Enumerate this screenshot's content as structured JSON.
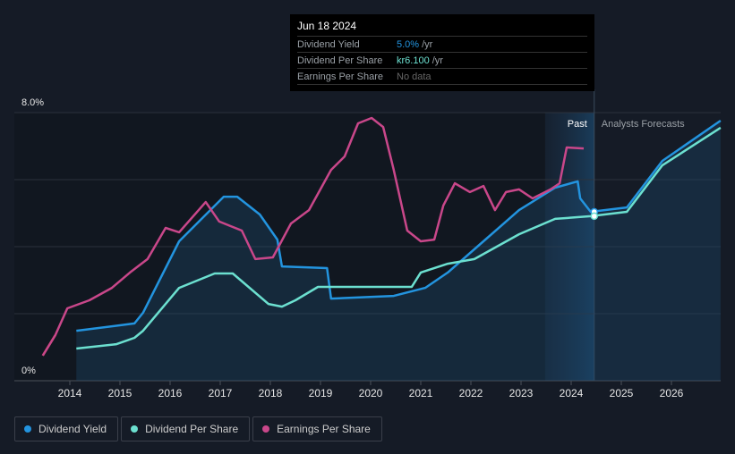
{
  "tooltip": {
    "date": "Jun 18 2024",
    "rows": [
      {
        "label": "Dividend Yield",
        "value": "5.0%",
        "unit": "/yr",
        "color": "#2394df"
      },
      {
        "label": "Dividend Per Share",
        "value": "kr6.100",
        "unit": "/yr",
        "color": "#6ce0d0"
      },
      {
        "label": "Earnings Per Share",
        "value": "No data",
        "unit": "",
        "color": "#666"
      }
    ]
  },
  "chart_data": {
    "type": "line",
    "ylabels": [
      "8.0%",
      "0%"
    ],
    "ylim": [
      0,
      8
    ],
    "xlim": [
      2013.4,
      2027.0
    ],
    "xticks": [
      "2014",
      "2015",
      "2016",
      "2017",
      "2018",
      "2019",
      "2020",
      "2021",
      "2022",
      "2023",
      "2024",
      "2025",
      "2026"
    ],
    "past_label": "Past",
    "forecast_label": "Analysts Forecasts",
    "past_start": 2023.48,
    "forecast_start": 2024.46,
    "series": [
      {
        "name": "Dividend Yield",
        "color": "#2394df",
        "fill": true,
        "points": [
          [
            2014.13,
            1.49
          ],
          [
            2015.29,
            1.71
          ],
          [
            2015.46,
            2.03
          ],
          [
            2016.18,
            4.16
          ],
          [
            2017.07,
            5.49
          ],
          [
            2017.34,
            5.49
          ],
          [
            2017.79,
            4.96
          ],
          [
            2018.14,
            4.21
          ],
          [
            2018.23,
            3.41
          ],
          [
            2019.13,
            3.36
          ],
          [
            2019.21,
            2.45
          ],
          [
            2020.46,
            2.53
          ],
          [
            2021.09,
            2.77
          ],
          [
            2021.54,
            3.23
          ],
          [
            2022.25,
            4.16
          ],
          [
            2022.96,
            5.09
          ],
          [
            2023.68,
            5.76
          ],
          [
            2024.13,
            5.95
          ],
          [
            2024.18,
            5.44
          ],
          [
            2024.39,
            5.04
          ],
          [
            2025.11,
            5.17
          ],
          [
            2025.82,
            6.56
          ],
          [
            2026.98,
            7.76
          ]
        ]
      },
      {
        "name": "Dividend Per Share",
        "color": "#6ce0d0",
        "fill": false,
        "points": [
          [
            2014.13,
            0.96
          ],
          [
            2014.93,
            1.09
          ],
          [
            2015.29,
            1.28
          ],
          [
            2015.46,
            1.49
          ],
          [
            2016.18,
            2.77
          ],
          [
            2016.89,
            3.2
          ],
          [
            2017.25,
            3.2
          ],
          [
            2017.96,
            2.29
          ],
          [
            2018.23,
            2.21
          ],
          [
            2018.5,
            2.4
          ],
          [
            2018.95,
            2.8
          ],
          [
            2020.82,
            2.8
          ],
          [
            2021.0,
            3.23
          ],
          [
            2021.54,
            3.49
          ],
          [
            2022.07,
            3.63
          ],
          [
            2022.96,
            4.37
          ],
          [
            2023.68,
            4.83
          ],
          [
            2024.39,
            4.91
          ],
          [
            2025.11,
            5.04
          ],
          [
            2025.82,
            6.43
          ],
          [
            2026.98,
            7.55
          ]
        ]
      },
      {
        "name": "Earnings Per Share",
        "color": "#c9478a",
        "fill": false,
        "points": [
          [
            2013.46,
            0.75
          ],
          [
            2013.71,
            1.36
          ],
          [
            2013.95,
            2.16
          ],
          [
            2014.39,
            2.4
          ],
          [
            2014.84,
            2.77
          ],
          [
            2015.2,
            3.23
          ],
          [
            2015.55,
            3.63
          ],
          [
            2015.91,
            4.56
          ],
          [
            2016.18,
            4.43
          ],
          [
            2016.71,
            5.33
          ],
          [
            2016.98,
            4.75
          ],
          [
            2017.43,
            4.48
          ],
          [
            2017.7,
            3.63
          ],
          [
            2018.05,
            3.68
          ],
          [
            2018.41,
            4.69
          ],
          [
            2018.77,
            5.09
          ],
          [
            2019.21,
            6.29
          ],
          [
            2019.48,
            6.69
          ],
          [
            2019.75,
            7.68
          ],
          [
            2020.02,
            7.84
          ],
          [
            2020.25,
            7.57
          ],
          [
            2020.46,
            6.29
          ],
          [
            2020.73,
            4.48
          ],
          [
            2021.0,
            4.16
          ],
          [
            2021.27,
            4.21
          ],
          [
            2021.45,
            5.23
          ],
          [
            2021.68,
            5.89
          ],
          [
            2021.98,
            5.63
          ],
          [
            2022.25,
            5.81
          ],
          [
            2022.48,
            5.09
          ],
          [
            2022.7,
            5.63
          ],
          [
            2022.96,
            5.71
          ],
          [
            2023.23,
            5.44
          ],
          [
            2023.59,
            5.71
          ],
          [
            2023.77,
            5.89
          ],
          [
            2023.91,
            6.96
          ],
          [
            2024.25,
            6.93
          ]
        ]
      }
    ]
  }
}
